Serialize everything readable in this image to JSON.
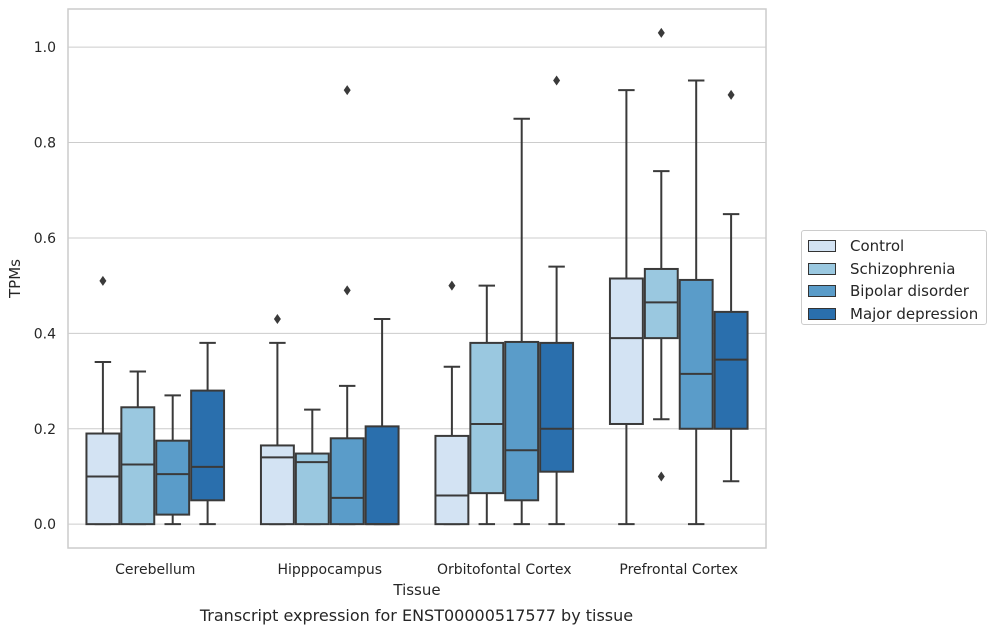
{
  "caption": "Transcript expression for ENST00000517577 by tissue",
  "chart_data": {
    "type": "box",
    "xlabel": "Tissue",
    "ylabel": "TPMs",
    "ylim": [
      -0.05,
      1.08
    ],
    "yticks": [
      "0.0",
      "0.2",
      "0.4",
      "0.6",
      "0.8",
      "1.0"
    ],
    "grid": true,
    "legend_position": "right",
    "categories": [
      "Cerebellum",
      "Hipppocampus",
      "Orbitofontal Cortex",
      "Prefrontal Cortex"
    ],
    "series": [
      {
        "name": "Control",
        "color": "#d3e3f3",
        "boxes": [
          {
            "whislo": 0.0,
            "q1": 0.0,
            "med": 0.1,
            "q3": 0.19,
            "whishi": 0.34,
            "fliers": [
              0.51
            ]
          },
          {
            "whislo": 0.0,
            "q1": 0.0,
            "med": 0.14,
            "q3": 0.165,
            "whishi": 0.38,
            "fliers": [
              0.43
            ]
          },
          {
            "whislo": 0.0,
            "q1": 0.0,
            "med": 0.06,
            "q3": 0.185,
            "whishi": 0.33,
            "fliers": [
              0.5
            ]
          },
          {
            "whislo": 0.0,
            "q1": 0.21,
            "med": 0.39,
            "q3": 0.515,
            "whishi": 0.91,
            "fliers": []
          }
        ]
      },
      {
        "name": "Schizophrenia",
        "color": "#9ac8e0",
        "boxes": [
          {
            "whislo": 0.0,
            "q1": 0.0,
            "med": 0.125,
            "q3": 0.245,
            "whishi": 0.32,
            "fliers": []
          },
          {
            "whislo": 0.0,
            "q1": 0.0,
            "med": 0.13,
            "q3": 0.148,
            "whishi": 0.24,
            "fliers": []
          },
          {
            "whislo": 0.0,
            "q1": 0.065,
            "med": 0.21,
            "q3": 0.38,
            "whishi": 0.5,
            "fliers": []
          },
          {
            "whislo": 0.22,
            "q1": 0.39,
            "med": 0.465,
            "q3": 0.535,
            "whishi": 0.74,
            "fliers": [
              0.1,
              1.03
            ]
          }
        ]
      },
      {
        "name": "Bipolar disorder",
        "color": "#5a9cc9",
        "boxes": [
          {
            "whislo": 0.0,
            "q1": 0.02,
            "med": 0.105,
            "q3": 0.175,
            "whishi": 0.27,
            "fliers": []
          },
          {
            "whislo": 0.0,
            "q1": 0.0,
            "med": 0.055,
            "q3": 0.18,
            "whishi": 0.29,
            "fliers": [
              0.49,
              0.91
            ]
          },
          {
            "whislo": 0.0,
            "q1": 0.05,
            "med": 0.155,
            "q3": 0.382,
            "whishi": 0.85,
            "fliers": []
          },
          {
            "whislo": 0.0,
            "q1": 0.2,
            "med": 0.315,
            "q3": 0.512,
            "whishi": 0.93,
            "fliers": []
          }
        ]
      },
      {
        "name": "Major depression",
        "color": "#2a6fad",
        "boxes": [
          {
            "whislo": 0.0,
            "q1": 0.05,
            "med": 0.12,
            "q3": 0.28,
            "whishi": 0.38,
            "fliers": []
          },
          {
            "whislo": 0.0,
            "q1": 0.0,
            "med": 0.0,
            "q3": 0.205,
            "whishi": 0.43,
            "fliers": []
          },
          {
            "whislo": 0.0,
            "q1": 0.11,
            "med": 0.2,
            "q3": 0.38,
            "whishi": 0.54,
            "fliers": [
              0.93
            ]
          },
          {
            "whislo": 0.09,
            "q1": 0.2,
            "med": 0.345,
            "q3": 0.445,
            "whishi": 0.65,
            "fliers": [
              0.9
            ]
          }
        ]
      }
    ]
  }
}
